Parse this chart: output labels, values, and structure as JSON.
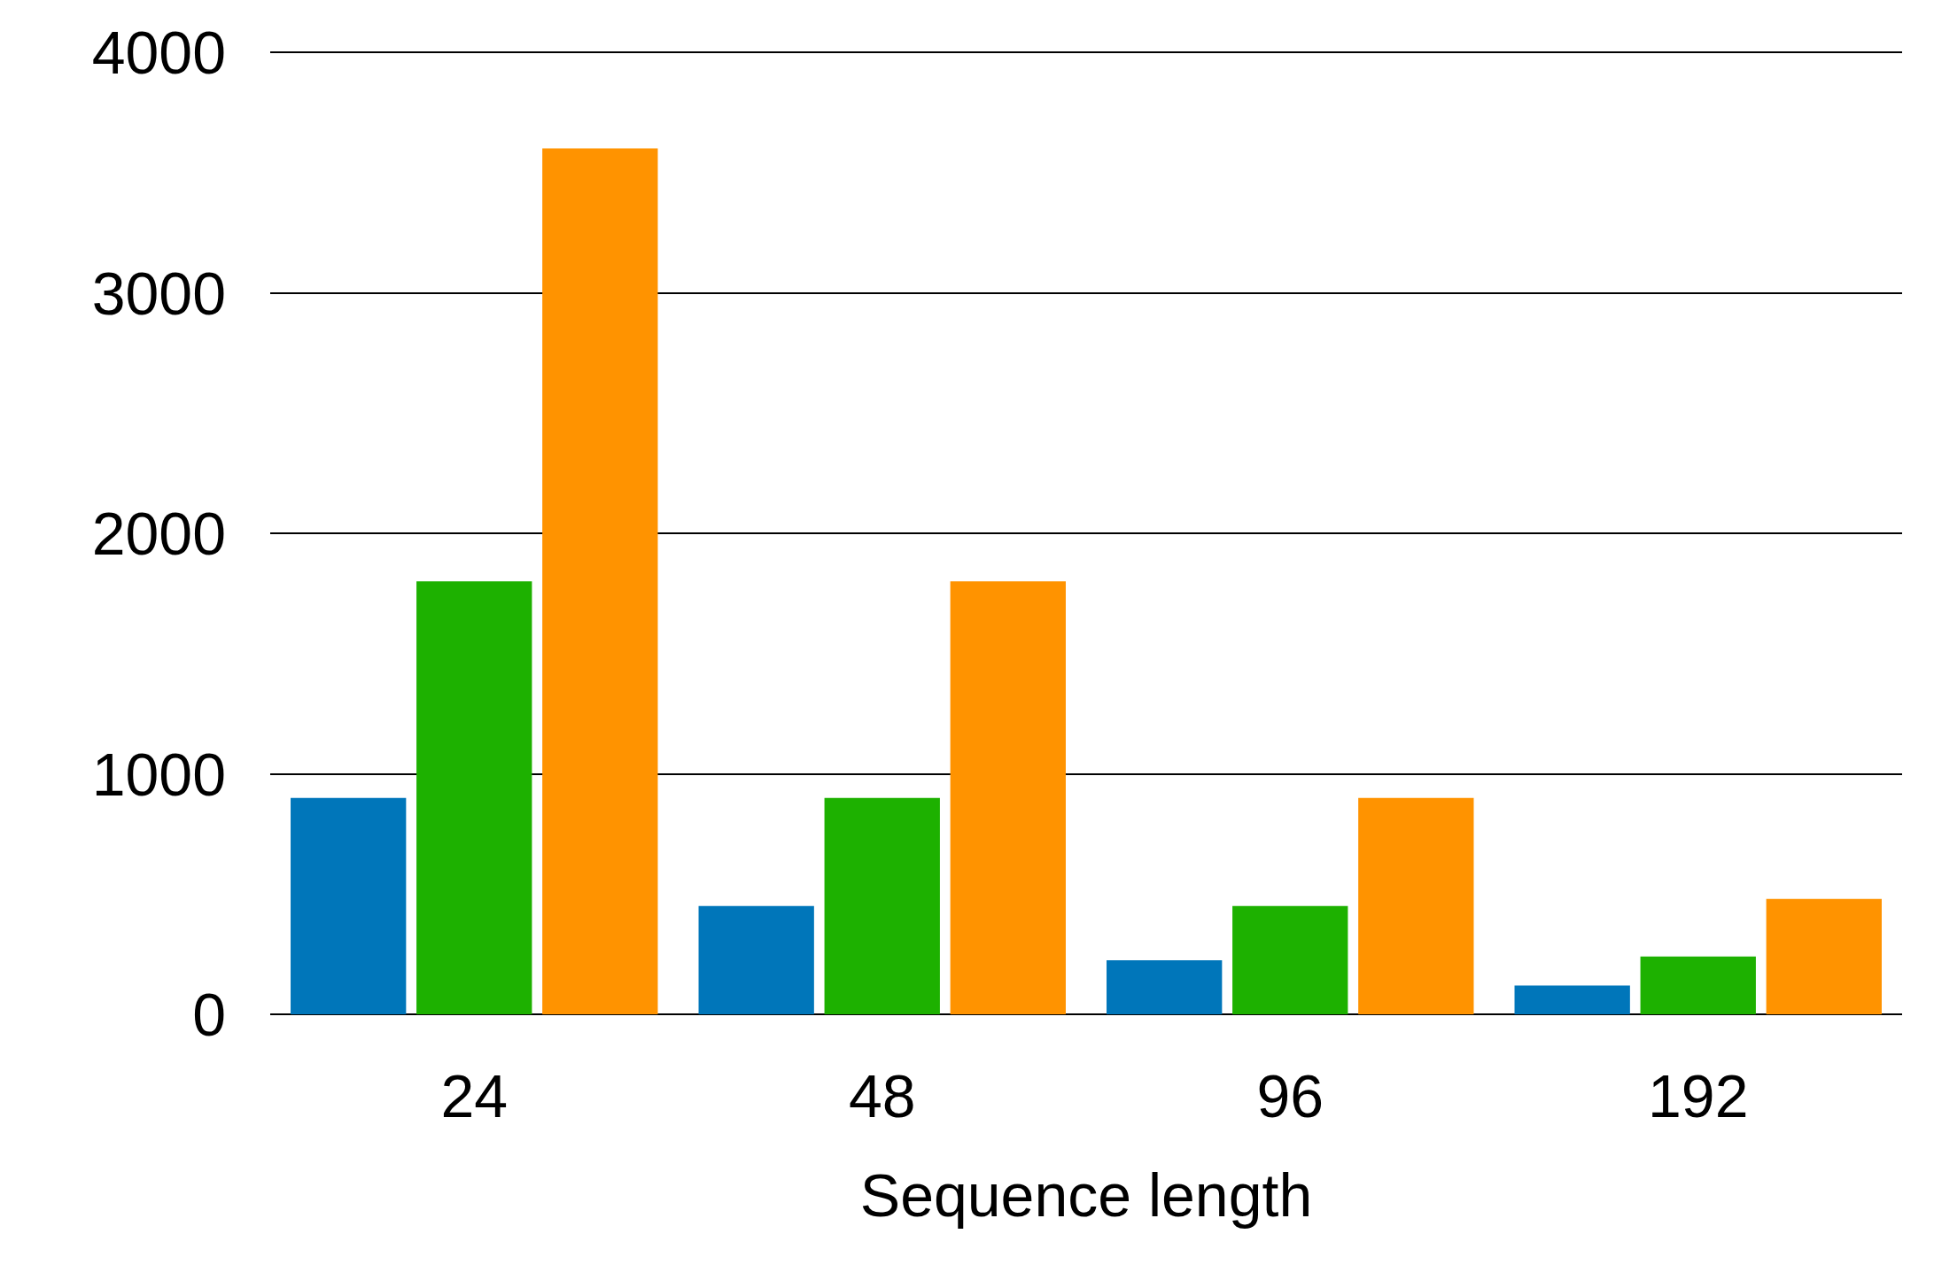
{
  "chart_data": {
    "type": "bar",
    "xlabel": "Sequence length",
    "categories": [
      "24",
      "48",
      "96",
      "192"
    ],
    "series": [
      {
        "color": "#0076ba",
        "values": [
          900,
          450,
          225,
          120
        ]
      },
      {
        "color": "#1db100",
        "values": [
          1800,
          900,
          450,
          240
        ]
      },
      {
        "color": "#ff9300",
        "values": [
          3600,
          1800,
          900,
          480
        ]
      }
    ],
    "ylim": [
      0,
      4000
    ],
    "yticks": [
      0,
      1000,
      2000,
      3000,
      4000
    ],
    "grid": "y"
  }
}
